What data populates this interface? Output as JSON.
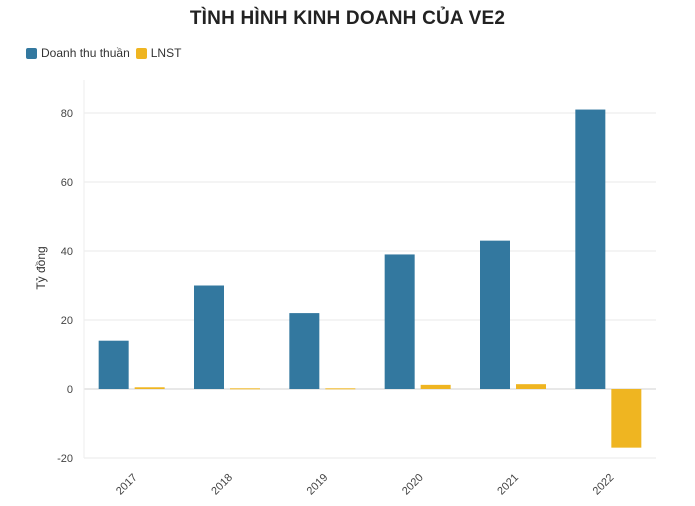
{
  "chart_data": {
    "type": "bar",
    "title": "TÌNH HÌNH KINH DOANH CỦA VE2",
    "xlabel": "",
    "ylabel": "Tỷ đồng",
    "categories": [
      "2017",
      "2018",
      "2019",
      "2020",
      "2021",
      "2022"
    ],
    "series": [
      {
        "name": "Doanh thu thuần",
        "color": "#33789f",
        "values": [
          14,
          30,
          22,
          39,
          43,
          81
        ]
      },
      {
        "name": "LNST",
        "color": "#efb521",
        "values": [
          0.5,
          0.2,
          0.2,
          1.2,
          1.4,
          -17
        ]
      }
    ],
    "ylim": [
      -20,
      90
    ],
    "yticks": [
      -20,
      0,
      20,
      40,
      60,
      80
    ],
    "grid": true,
    "legend_position": "top-left"
  }
}
